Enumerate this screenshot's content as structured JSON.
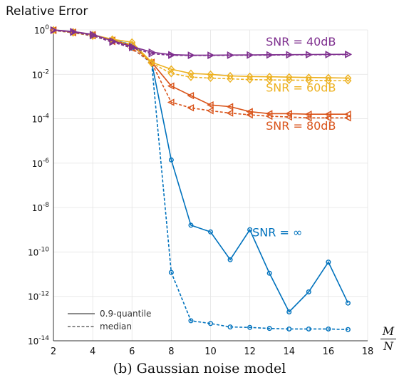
{
  "chart_data": {
    "type": "line",
    "ylabel": "Relative Error",
    "xlabel_num": "M",
    "xlabel_den": "N",
    "caption": "(b) Gaussian noise model",
    "xlim": [
      2,
      18
    ],
    "ylim_log10": [
      -14,
      0
    ],
    "yscale": "log",
    "grid": true,
    "x_ticks": [
      2,
      4,
      6,
      8,
      10,
      12,
      14,
      16,
      18
    ],
    "y_ticks": [
      {
        "exp": 0,
        "base": "10",
        "sup": "0"
      },
      {
        "exp": -2,
        "base": "10",
        "sup": "-2"
      },
      {
        "exp": -4,
        "base": "10",
        "sup": "-4"
      },
      {
        "exp": -6,
        "base": "10",
        "sup": "-6"
      },
      {
        "exp": -8,
        "base": "10",
        "sup": "-8"
      },
      {
        "exp": -10,
        "base": "10",
        "sup": "-10"
      },
      {
        "exp": -12,
        "base": "10",
        "sup": "-12"
      },
      {
        "exp": -14,
        "base": "10",
        "sup": "-14"
      }
    ],
    "legend": {
      "placement": "bottom-left",
      "entries": [
        {
          "label": "0.9-quantile",
          "style": "solid"
        },
        {
          "label": "median",
          "style": "dashed"
        }
      ]
    },
    "series": [
      {
        "name": "SNR = 40dB",
        "color": "#7E2F8E",
        "marker": "triangle-right",
        "x": [
          2,
          3,
          4,
          5,
          6,
          7,
          8,
          9,
          10,
          11,
          12,
          13,
          14,
          15,
          16,
          17
        ],
        "quantile_0_9": [
          1.0,
          0.85,
          0.63,
          0.32,
          0.18,
          0.1,
          0.077,
          0.073,
          0.073,
          0.074,
          0.075,
          0.076,
          0.077,
          0.078,
          0.079,
          0.08
        ],
        "median": [
          0.95,
          0.78,
          0.55,
          0.28,
          0.16,
          0.085,
          0.072,
          0.071,
          0.071,
          0.072,
          0.073,
          0.074,
          0.075,
          0.076,
          0.077,
          0.078
        ]
      },
      {
        "name": "SNR = 60dB",
        "color": "#EDB120",
        "marker": "diamond",
        "x": [
          2,
          3,
          4,
          5,
          6,
          7,
          8,
          9,
          10,
          11,
          12,
          13,
          14,
          15,
          16,
          17
        ],
        "quantile_0_9": [
          1.0,
          0.82,
          0.6,
          0.38,
          0.28,
          0.035,
          0.017,
          0.011,
          0.01,
          0.0085,
          0.008,
          0.0078,
          0.0075,
          0.0072,
          0.007,
          0.0068
        ],
        "median": [
          0.95,
          0.75,
          0.53,
          0.33,
          0.22,
          0.032,
          0.011,
          0.0075,
          0.0068,
          0.0063,
          0.0058,
          0.0056,
          0.0055,
          0.0054,
          0.0052,
          0.0052
        ]
      },
      {
        "name": "SNR = 80dB",
        "color": "#D95319",
        "marker": "triangle-left",
        "x": [
          2,
          3,
          4,
          5,
          6,
          7,
          8,
          9,
          10,
          11,
          12,
          13,
          14,
          15,
          16,
          17
        ],
        "quantile_0_9": [
          1.0,
          0.8,
          0.62,
          0.35,
          0.2,
          0.035,
          0.003,
          0.0011,
          0.00042,
          0.00035,
          0.00021,
          0.00017,
          0.00017,
          0.00016,
          0.00016,
          0.00016
        ],
        "median": [
          0.95,
          0.75,
          0.55,
          0.3,
          0.15,
          0.033,
          0.00055,
          0.00031,
          0.00023,
          0.00018,
          0.00015,
          0.00013,
          0.00012,
          0.00011,
          0.00011,
          0.00011
        ]
      },
      {
        "name": "SNR = ∞",
        "color": "#0072BD",
        "marker": "circle",
        "x": [
          2,
          3,
          4,
          5,
          6,
          7,
          8,
          9,
          10,
          11,
          12,
          13,
          14,
          15,
          16,
          17
        ],
        "quantile_0_9": [
          1.0,
          0.82,
          0.6,
          0.35,
          0.22,
          0.035,
          1.4e-06,
          1.6e-09,
          8e-10,
          4.5e-11,
          1e-09,
          1.1e-11,
          2e-13,
          1.6e-12,
          3.5e-11,
          5e-13
        ],
        "median": [
          0.95,
          0.75,
          0.55,
          0.3,
          0.15,
          0.032,
          1.2e-11,
          8e-14,
          6e-14,
          4.2e-14,
          4e-14,
          3.6e-14,
          3.4e-14,
          3.4e-14,
          3.4e-14,
          3.2e-14
        ]
      }
    ],
    "annotations": [
      {
        "text": "SNR = 40dB",
        "color": "#7E2F8E"
      },
      {
        "text": "SNR = 60dB",
        "color": "#EDB120"
      },
      {
        "text": "SNR = 80dB",
        "color": "#D95319"
      },
      {
        "text": "SNR = ∞",
        "color": "#0072BD"
      }
    ]
  }
}
